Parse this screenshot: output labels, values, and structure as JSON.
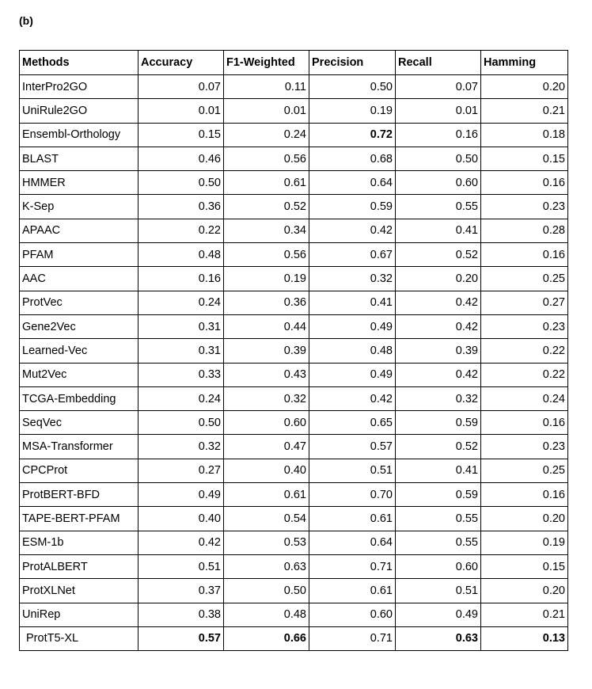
{
  "panel_label": "(b)",
  "table": {
    "headers": [
      "Methods",
      "Accuracy",
      "F1-Weighted",
      "Precision",
      "Recall",
      "Hamming"
    ],
    "rows": [
      {
        "method": "InterPro2GO",
        "values": [
          "0.07",
          "0.11",
          "0.50",
          "0.07",
          "0.20"
        ],
        "bold": []
      },
      {
        "method": "UniRule2GO",
        "values": [
          "0.01",
          "0.01",
          "0.19",
          "0.01",
          "0.21"
        ],
        "bold": []
      },
      {
        "method": "Ensembl-Orthology",
        "values": [
          "0.15",
          "0.24",
          "0.72",
          "0.16",
          "0.18"
        ],
        "bold": [
          2
        ]
      },
      {
        "method": "BLAST",
        "values": [
          "0.46",
          "0.56",
          "0.68",
          "0.50",
          "0.15"
        ],
        "bold": []
      },
      {
        "method": "HMMER",
        "values": [
          "0.50",
          "0.61",
          "0.64",
          "0.60",
          "0.16"
        ],
        "bold": []
      },
      {
        "method": "K-Sep",
        "values": [
          "0.36",
          "0.52",
          "0.59",
          "0.55",
          "0.23"
        ],
        "bold": []
      },
      {
        "method": "APAAC",
        "values": [
          "0.22",
          "0.34",
          "0.42",
          "0.41",
          "0.28"
        ],
        "bold": []
      },
      {
        "method": "PFAM",
        "values": [
          "0.48",
          "0.56",
          "0.67",
          "0.52",
          "0.16"
        ],
        "bold": []
      },
      {
        "method": "AAC",
        "values": [
          "0.16",
          "0.19",
          "0.32",
          "0.20",
          "0.25"
        ],
        "bold": []
      },
      {
        "method": "ProtVec",
        "values": [
          "0.24",
          "0.36",
          "0.41",
          "0.42",
          "0.27"
        ],
        "bold": []
      },
      {
        "method": "Gene2Vec",
        "values": [
          "0.31",
          "0.44",
          "0.49",
          "0.42",
          "0.23"
        ],
        "bold": []
      },
      {
        "method": "Learned-Vec",
        "values": [
          "0.31",
          "0.39",
          "0.48",
          "0.39",
          "0.22"
        ],
        "bold": []
      },
      {
        "method": "Mut2Vec",
        "values": [
          "0.33",
          "0.43",
          "0.49",
          "0.42",
          "0.22"
        ],
        "bold": []
      },
      {
        "method": "TCGA-Embedding",
        "values": [
          "0.24",
          "0.32",
          "0.42",
          "0.32",
          "0.24"
        ],
        "bold": []
      },
      {
        "method": "SeqVec",
        "values": [
          "0.50",
          "0.60",
          "0.65",
          "0.59",
          "0.16"
        ],
        "bold": []
      },
      {
        "method": "MSA-Transformer",
        "values": [
          "0.32",
          "0.47",
          "0.57",
          "0.52",
          "0.23"
        ],
        "bold": []
      },
      {
        "method": "CPCProt",
        "values": [
          "0.27",
          "0.40",
          "0.51",
          "0.41",
          "0.25"
        ],
        "bold": []
      },
      {
        "method": "ProtBERT-BFD",
        "values": [
          "0.49",
          "0.61",
          "0.70",
          "0.59",
          "0.16"
        ],
        "bold": []
      },
      {
        "method": "TAPE-BERT-PFAM",
        "values": [
          "0.40",
          "0.54",
          "0.61",
          "0.55",
          "0.20"
        ],
        "bold": []
      },
      {
        "method": "ESM-1b",
        "values": [
          "0.42",
          "0.53",
          "0.64",
          "0.55",
          "0.19"
        ],
        "bold": []
      },
      {
        "method": "ProtALBERT",
        "values": [
          "0.51",
          "0.63",
          "0.71",
          "0.60",
          "0.15"
        ],
        "bold": []
      },
      {
        "method": "ProtXLNet",
        "values": [
          "0.37",
          "0.50",
          "0.61",
          "0.51",
          "0.20"
        ],
        "bold": []
      },
      {
        "method": "UniRep",
        "values": [
          "0.38",
          "0.48",
          "0.60",
          "0.49",
          "0.21"
        ],
        "bold": []
      },
      {
        "method": "ProtT5-XL",
        "values": [
          "0.57",
          "0.66",
          "0.71",
          "0.63",
          "0.13"
        ],
        "bold": [
          0,
          1,
          3,
          4
        ]
      }
    ]
  }
}
